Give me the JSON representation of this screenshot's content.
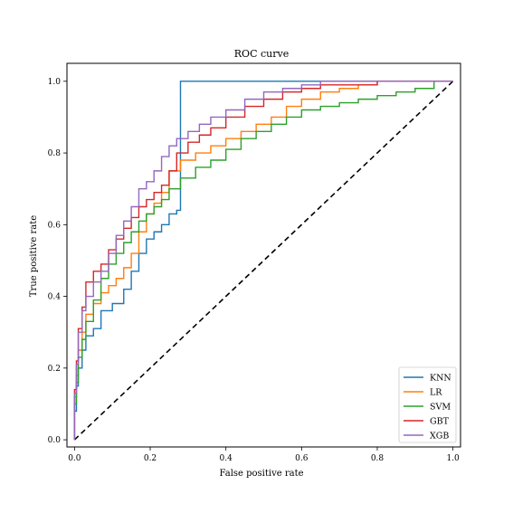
{
  "chart_data": {
    "type": "line",
    "title": "ROC curve",
    "xlabel": "False positive rate",
    "ylabel": "True positive rate",
    "xlim": [
      -0.02,
      1.02
    ],
    "ylim": [
      -0.02,
      1.05
    ],
    "xticks": [
      "0.0",
      "0.2",
      "0.4",
      "0.6",
      "0.8",
      "1.0"
    ],
    "yticks": [
      "0.0",
      "0.2",
      "0.4",
      "0.6",
      "0.8",
      "1.0"
    ],
    "grid": false,
    "legend_position": "lower-right",
    "diagonal": {
      "x": [
        0,
        1
      ],
      "y": [
        0,
        1
      ],
      "style": "dashed",
      "color": "#000000"
    },
    "series": [
      {
        "name": "KNN",
        "color": "#1f77b4",
        "x": [
          0,
          0.005,
          0.01,
          0.02,
          0.03,
          0.05,
          0.07,
          0.1,
          0.13,
          0.15,
          0.17,
          0.19,
          0.21,
          0.23,
          0.25,
          0.27,
          0.28,
          1.0
        ],
        "y": [
          0,
          0.08,
          0.15,
          0.2,
          0.25,
          0.29,
          0.31,
          0.36,
          0.38,
          0.42,
          0.47,
          0.52,
          0.56,
          0.58,
          0.6,
          0.63,
          0.64,
          1.0
        ]
      },
      {
        "name": "LR",
        "color": "#ff7f0e",
        "x": [
          0,
          0.005,
          0.01,
          0.02,
          0.03,
          0.05,
          0.07,
          0.09,
          0.11,
          0.13,
          0.15,
          0.17,
          0.19,
          0.21,
          0.23,
          0.25,
          0.28,
          0.32,
          0.36,
          0.4,
          0.44,
          0.48,
          0.52,
          0.56,
          0.6,
          0.65,
          0.7,
          0.75,
          0.8,
          0.83,
          1.0
        ],
        "y": [
          0,
          0.12,
          0.18,
          0.25,
          0.3,
          0.35,
          0.38,
          0.41,
          0.43,
          0.45,
          0.48,
          0.52,
          0.58,
          0.63,
          0.66,
          0.69,
          0.75,
          0.78,
          0.8,
          0.82,
          0.84,
          0.86,
          0.88,
          0.9,
          0.93,
          0.95,
          0.97,
          0.98,
          0.99,
          1.0,
          1.0
        ]
      },
      {
        "name": "SVM",
        "color": "#2ca02c",
        "x": [
          0,
          0.005,
          0.01,
          0.02,
          0.03,
          0.05,
          0.07,
          0.09,
          0.11,
          0.13,
          0.15,
          0.17,
          0.19,
          0.21,
          0.23,
          0.25,
          0.28,
          0.32,
          0.36,
          0.4,
          0.44,
          0.48,
          0.52,
          0.56,
          0.6,
          0.65,
          0.7,
          0.75,
          0.8,
          0.85,
          0.9,
          0.95,
          1.0
        ],
        "y": [
          0,
          0.1,
          0.16,
          0.23,
          0.28,
          0.33,
          0.39,
          0.45,
          0.49,
          0.52,
          0.55,
          0.58,
          0.61,
          0.63,
          0.65,
          0.67,
          0.7,
          0.73,
          0.76,
          0.78,
          0.81,
          0.84,
          0.86,
          0.88,
          0.9,
          0.92,
          0.93,
          0.94,
          0.95,
          0.96,
          0.97,
          0.98,
          1.0
        ]
      },
      {
        "name": "GBT",
        "color": "#d62728",
        "x": [
          0,
          0.005,
          0.01,
          0.02,
          0.03,
          0.05,
          0.07,
          0.09,
          0.11,
          0.13,
          0.15,
          0.17,
          0.19,
          0.21,
          0.23,
          0.25,
          0.27,
          0.3,
          0.33,
          0.36,
          0.4,
          0.45,
          0.5,
          0.55,
          0.6,
          0.65,
          0.7,
          0.8,
          0.9,
          1.0
        ],
        "y": [
          0,
          0.14,
          0.22,
          0.31,
          0.37,
          0.44,
          0.47,
          0.49,
          0.53,
          0.56,
          0.59,
          0.62,
          0.65,
          0.67,
          0.69,
          0.71,
          0.75,
          0.8,
          0.83,
          0.85,
          0.87,
          0.9,
          0.93,
          0.95,
          0.97,
          0.98,
          0.99,
          0.99,
          1.0,
          1.0
        ]
      },
      {
        "name": "XGB",
        "color": "#9467bd",
        "x": [
          0,
          0.005,
          0.01,
          0.02,
          0.03,
          0.05,
          0.07,
          0.09,
          0.11,
          0.13,
          0.15,
          0.17,
          0.19,
          0.21,
          0.23,
          0.25,
          0.27,
          0.3,
          0.33,
          0.36,
          0.4,
          0.45,
          0.5,
          0.55,
          0.6,
          0.65,
          0.7,
          1.0
        ],
        "y": [
          0,
          0.13,
          0.21,
          0.3,
          0.36,
          0.4,
          0.44,
          0.47,
          0.52,
          0.57,
          0.61,
          0.65,
          0.7,
          0.72,
          0.75,
          0.79,
          0.82,
          0.84,
          0.86,
          0.88,
          0.9,
          0.92,
          0.95,
          0.97,
          0.98,
          0.99,
          1.0,
          1.0
        ]
      }
    ]
  }
}
